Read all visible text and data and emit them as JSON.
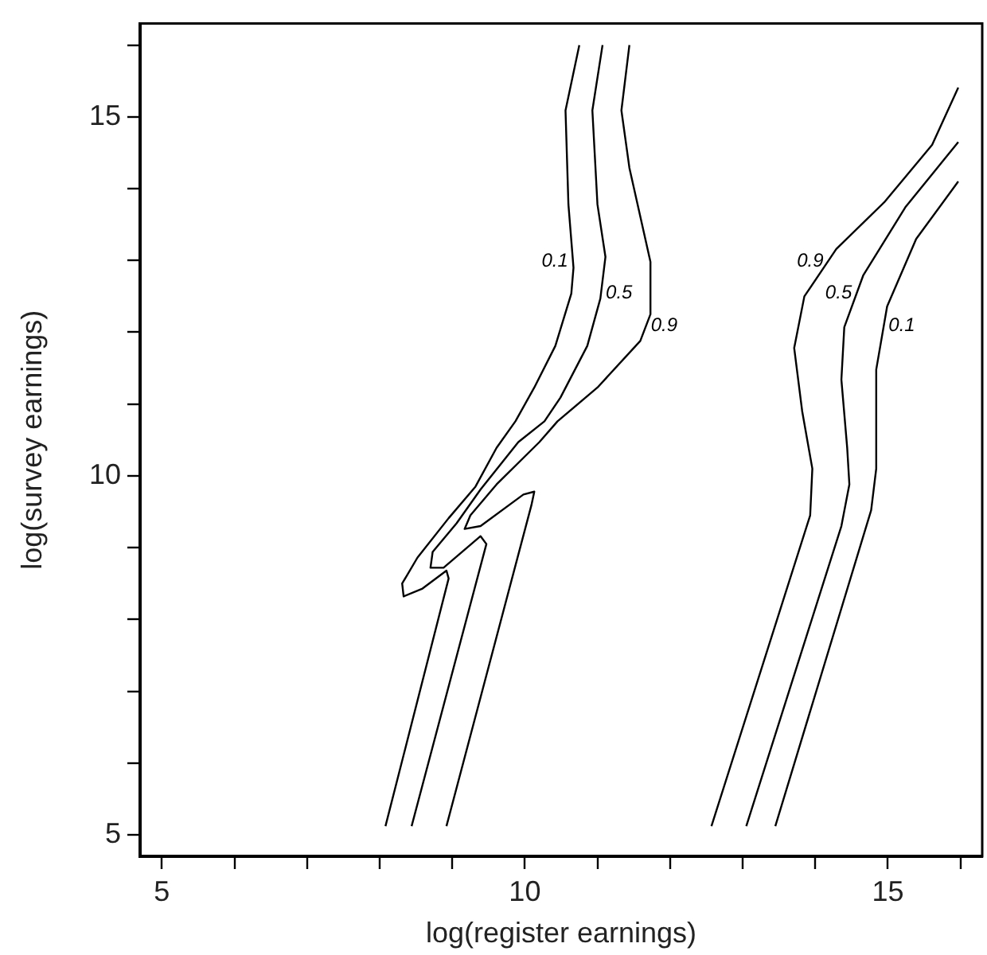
{
  "chart_data": {
    "type": "line",
    "xlabel": "log(register earnings)",
    "ylabel": "log(survey earnings)",
    "xlim": [
      4.7,
      16.3
    ],
    "ylim": [
      4.7,
      16.3
    ],
    "xticks": [
      5,
      {
        "value": 6,
        "label": null
      },
      {
        "value": 7,
        "label": null
      },
      {
        "value": 8,
        "label": null
      },
      {
        "value": 9,
        "label": null
      },
      10,
      {
        "value": 11,
        "label": null
      },
      {
        "value": 12,
        "label": null
      },
      {
        "value": 13,
        "label": null
      },
      {
        "value": 14,
        "label": null
      },
      15,
      {
        "value": 16,
        "label": null
      }
    ],
    "yticks": [
      5,
      {
        "value": 6,
        "label": null
      },
      {
        "value": 7,
        "label": null
      },
      {
        "value": 8,
        "label": null
      },
      {
        "value": 9,
        "label": null
      },
      10,
      {
        "value": 11,
        "label": null
      },
      {
        "value": 12,
        "label": null
      },
      {
        "value": 13,
        "label": null
      },
      {
        "value": 14,
        "label": null
      },
      15,
      {
        "value": 16,
        "label": null
      }
    ],
    "grid": false,
    "legend": false,
    "marker": "none",
    "line_style": "solid",
    "series": [
      {
        "name": "0.1",
        "color": "#000000",
        "x": [
          10.75,
          10.56,
          10.6,
          10.67,
          10.64,
          10.42,
          10.13,
          9.87,
          9.61,
          9.32,
          8.95,
          8.52,
          8.31,
          8.33,
          8.59,
          8.92,
          8.95,
          8.08
        ],
        "values": [
          16.0,
          15.09,
          13.78,
          12.9,
          12.54,
          11.81,
          11.23,
          10.76,
          10.39,
          9.85,
          9.41,
          8.86,
          8.5,
          8.32,
          8.43,
          8.68,
          8.57,
          5.12
        ]
      },
      {
        "name": "0.5",
        "color": "#000000",
        "x": [
          11.07,
          10.93,
          11.0,
          11.11,
          11.04,
          10.86,
          10.49,
          10.27,
          9.91,
          9.39,
          9.06,
          8.73,
          8.7,
          8.88,
          9.39,
          9.47,
          8.44
        ],
        "values": [
          16.0,
          15.09,
          13.78,
          13.05,
          12.47,
          11.81,
          11.09,
          10.76,
          10.47,
          9.81,
          9.34,
          8.94,
          8.72,
          8.72,
          9.16,
          9.05,
          5.12
        ]
      },
      {
        "name": "0.9",
        "color": "#000000",
        "x": [
          11.44,
          11.33,
          11.44,
          11.73,
          11.73,
          11.59,
          11.0,
          10.45,
          10.2,
          9.61,
          9.25,
          9.17,
          9.39,
          9.98,
          10.13,
          10.09,
          8.92
        ],
        "values": [
          16.0,
          15.09,
          14.29,
          12.98,
          12.25,
          11.88,
          11.23,
          10.76,
          10.47,
          9.88,
          9.45,
          9.26,
          9.3,
          9.74,
          9.78,
          9.59,
          5.12
        ]
      },
      {
        "name": "0.9",
        "color": "#000000",
        "x": [
          15.97,
          15.61,
          14.95,
          14.29,
          13.85,
          13.71,
          13.82,
          13.96,
          13.93,
          12.57
        ],
        "values": [
          15.41,
          14.61,
          13.81,
          13.16,
          12.5,
          11.78,
          10.9,
          10.1,
          9.45,
          5.12
        ]
      },
      {
        "name": "0.5",
        "color": "#000000",
        "x": [
          15.97,
          15.24,
          14.66,
          14.4,
          14.36,
          14.44,
          14.47,
          14.36,
          13.05
        ],
        "values": [
          14.65,
          13.74,
          12.79,
          12.07,
          11.34,
          10.39,
          9.88,
          9.3,
          5.12
        ]
      },
      {
        "name": "0.1",
        "color": "#000000",
        "x": [
          15.97,
          15.39,
          14.99,
          14.84,
          14.84,
          14.77,
          13.45
        ],
        "values": [
          14.1,
          13.3,
          12.36,
          11.48,
          10.1,
          9.52,
          5.12
        ]
      }
    ]
  }
}
